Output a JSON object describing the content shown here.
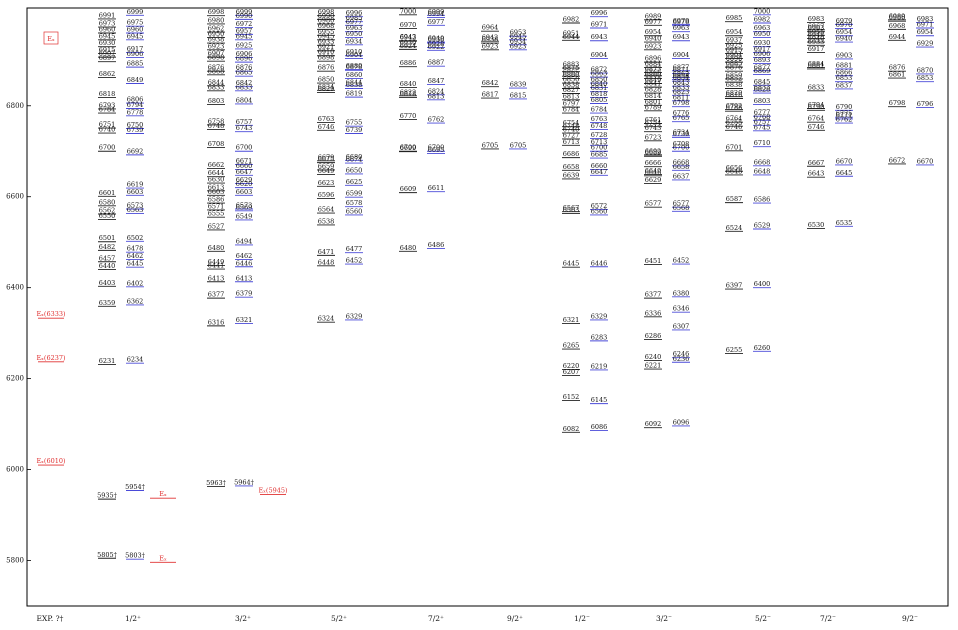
{
  "chart_data": {
    "type": "level-scheme",
    "legend_label": "Eₓ",
    "ylim": [
      5700,
      7015
    ],
    "yticks": [
      5800,
      6000,
      6200,
      6400,
      6600,
      6800
    ],
    "colors": [
      "#222222",
      "#4a4ad8"
    ],
    "experiment_color": "#e03030",
    "columns": [
      {
        "name": "EXP. ?†",
        "experiment": [
          {
            "label": "Eₓ(6333)",
            "value": 6333
          },
          {
            "label": "Eₓ(6237)",
            "value": 6237
          },
          {
            "label": "Eₓ(6010)",
            "value": 6010
          }
        ]
      },
      {
        "name": "1/2⁺",
        "experiment": [
          {
            "label": "Eₓ",
            "value": 5937
          },
          {
            "label": "Eₓ",
            "value": 5796
          }
        ],
        "series": [
          {
            "values": [
              6991,
              6973,
              6960,
              6945,
              6930,
              6915,
              6907,
              6897,
              6862,
              6818,
              6793,
              6784,
              6751,
              6740,
              6700,
              6601,
              6580,
              6562,
              6550,
              6501,
              6482,
              6457,
              6440,
              6403,
              6359,
              6231,
              5935,
              5805
            ],
            "value_labels": {
              "26": "5935†",
              "27": "5805†"
            }
          },
          {
            "values": [
              6999,
              6975,
              6960,
              6945,
              6917,
              6906,
              6885,
              6849,
              6806,
              6794,
              6778,
              6750,
              6739,
              6692,
              6619,
              6603,
              6573,
              6563,
              6502,
              6478,
              6462,
              6445,
              6402,
              6362,
              6234,
              5954,
              5803
            ],
            "value_labels": {
              "25": "5954†",
              "26": "5803†"
            }
          }
        ]
      },
      {
        "name": "3/2⁺",
        "experiment": [
          {
            "label": "Eₓ(5945)",
            "value": 5945
          }
        ],
        "series": [
          {
            "values": [
              6998,
              6980,
              6962,
              6950,
              6938,
              6923,
              6907,
              6898,
              6876,
              6868,
              6844,
              6833,
              6803,
              6758,
              6748,
              6708,
              6662,
              6644,
              6630,
              6613,
              6603,
              6586,
              6571,
              6555,
              6527,
              6480,
              6449,
              6441,
              6413,
              6377,
              6316,
              5963
            ],
            "value_labels": {
              "31": "5963†"
            }
          },
          {
            "values": [
              6999,
              6990,
              6972,
              6957,
              6945,
              6925,
              6906,
              6896,
              6876,
              6865,
              6842,
              6833,
              6804,
              6757,
              6743,
              6700,
              6671,
              6660,
              6647,
              6629,
              6620,
              6603,
              6573,
              6569,
              6549,
              6494,
              6462,
              6446,
              6413,
              6379,
              6321,
              5964
            ],
            "value_labels": {
              "31": "5964†"
            }
          }
        ]
      },
      {
        "name": "5/2⁺",
        "series": [
          {
            "values": [
              6998,
              6990,
              6980,
              6968,
              6955,
              6945,
              6933,
              6921,
              6910,
              6898,
              6876,
              6850,
              6834,
              6829,
              6763,
              6746,
              6679,
              6675,
              6659,
              6649,
              6623,
              6596,
              6564,
              6538,
              6471,
              6448,
              6324
            ]
          },
          {
            "values": [
              6996,
              6985,
              6977,
              6963,
              6950,
              6934,
              6910,
              6904,
              6880,
              6878,
              6860,
              6844,
              6838,
              6819,
              6755,
              6739,
              6680,
              6674,
              6650,
              6625,
              6599,
              6578,
              6560,
              6477,
              6452,
              6329
            ]
          }
        ]
      },
      {
        "name": "7/2⁺",
        "series": [
          {
            "values": [
              7000,
              6970,
              6943,
              6942,
              6930,
              6924,
              6886,
              6840,
              6822,
              6818,
              6770,
              6700,
              6699,
              6609,
              6480
            ]
          },
          {
            "values": [
              6999,
              6994,
              6977,
              6940,
              6938,
              6928,
              6922,
              6887,
              6847,
              6824,
              6813,
              6762,
              6700,
              6695,
              6611,
              6486
            ]
          }
        ]
      },
      {
        "name": "9/2⁺",
        "series": [
          {
            "values": [
              6964,
              6942,
              6938,
              6923,
              6842,
              6817,
              6705
            ]
          },
          {
            "values": [
              6953,
              6945,
              6934,
              6923,
              6839,
              6815,
              6705
            ]
          }
        ]
      },
      {
        "name": "1/2⁻",
        "series": [
          {
            "values": [
              6982,
              6951,
              6944,
              6883,
              6875,
              6865,
              6860,
              6850,
              6838,
              6827,
              6813,
              6797,
              6784,
              6754,
              6748,
              6740,
              6727,
              6713,
              6686,
              6658,
              6639,
              6567,
              6563,
              6445,
              6321,
              6265,
              6220,
              6207,
              6152,
              6082
            ]
          },
          {
            "values": [
              6996,
              6971,
              6943,
              6904,
              6872,
              6863,
              6850,
              6840,
              6831,
              6818,
              6805,
              6784,
              6763,
              6748,
              6728,
              6713,
              6700,
              6685,
              6660,
              6647,
              6572,
              6560,
              6446,
              6329,
              6283,
              6219,
              6145,
              6086
            ]
          }
        ]
      },
      {
        "name": "3/2⁻",
        "series": [
          {
            "values": [
              6989,
              6977,
              6954,
              6940,
              6923,
              6896,
              6884,
              6873,
              6866,
              6860,
              6849,
              6841,
              6828,
              6814,
              6801,
              6789,
              6761,
              6754,
              6743,
              6723,
              6692,
              6689,
              6666,
              6649,
              6646,
              6629,
              6577,
              6451,
              6377,
              6336,
              6286,
              6240,
              6221,
              6092
            ]
          },
          {
            "values": [
              6979,
              6976,
              6963,
              6943,
              6904,
              6877,
              6871,
              6862,
              6858,
              6854,
              6843,
              6833,
              6823,
              6811,
              6798,
              6776,
              6765,
              6734,
              6730,
              6708,
              6700,
              6668,
              6658,
              6637,
              6577,
              6568,
              6452,
              6380,
              6346,
              6307,
              6246,
              6236,
              6096
            ]
          }
        ]
      },
      {
        "name": "5/2⁻",
        "series": [
          {
            "values": [
              6985,
              6954,
              6937,
              6925,
              6915,
              6904,
              6896,
              6885,
              6876,
              6859,
              6852,
              6838,
              6820,
              6816,
              6792,
              6788,
              6764,
              6755,
              6746,
              6701,
              6656,
              6648,
              6587,
              6524,
              6397,
              6255
            ]
          },
          {
            "values": [
              7000,
              6982,
              6963,
              6950,
              6930,
              6917,
              6906,
              6893,
              6877,
              6869,
              6845,
              6833,
              6828,
              6803,
              6777,
              6768,
              6757,
              6745,
              6710,
              6668,
              6648,
              6586,
              6529,
              6400,
              6260
            ]
          }
        ]
      },
      {
        "name": "7/2⁻",
        "series": [
          {
            "values": [
              6983,
              6967,
              6963,
              6955,
              6948,
              6940,
              6933,
              6917,
              6884,
              6881,
              6833,
              6794,
              6790,
              6764,
              6746,
              6667,
              6643,
              6530
            ]
          },
          {
            "values": [
              6979,
              6970,
              6954,
              6940,
              6903,
              6881,
              6866,
              6853,
              6837,
              6790,
              6775,
              6771,
              6762,
              6670,
              6645,
              6535
            ]
          }
        ]
      },
      {
        "name": "9/2⁻",
        "series": [
          {
            "values": [
              6989,
              6986,
              6968,
              6944,
              6876,
              6861,
              6798,
              6672
            ]
          },
          {
            "values": [
              6983,
              6971,
              6954,
              6929,
              6870,
              6853,
              6796,
              6670
            ]
          }
        ]
      }
    ]
  }
}
